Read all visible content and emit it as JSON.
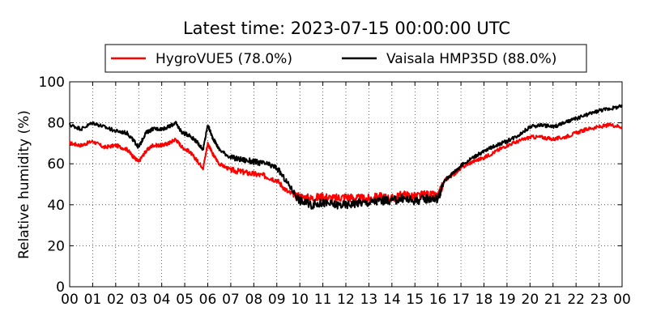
{
  "chart_data": {
    "type": "line",
    "title": "Latest time: 2023-07-15 00:00:00 UTC",
    "ylabel": "Relative humidity (%)",
    "xlabel": "",
    "xlim": [
      0,
      24
    ],
    "ylim": [
      0,
      100
    ],
    "x_ticks": [
      "00",
      "01",
      "02",
      "03",
      "04",
      "05",
      "06",
      "07",
      "08",
      "09",
      "10",
      "11",
      "12",
      "13",
      "14",
      "15",
      "16",
      "17",
      "18",
      "19",
      "20",
      "21",
      "22",
      "23",
      "00"
    ],
    "y_ticks": [
      "0",
      "20",
      "40",
      "60",
      "80",
      "100"
    ],
    "grid": true,
    "legend_position": "top-center",
    "series": [
      {
        "name": "HygroVUE5 (78.0%)",
        "color": "#ff0000",
        "x": [
          0,
          0.5,
          1,
          1.5,
          2,
          2.5,
          2.8,
          3,
          3.3,
          3.6,
          4,
          4.3,
          4.6,
          4.9,
          5.2,
          5.5,
          5.8,
          6,
          6.2,
          6.5,
          7,
          7.5,
          8,
          8.5,
          9,
          9.5,
          10,
          10.5,
          11,
          11.5,
          12,
          12.5,
          13,
          13.5,
          14,
          14.5,
          15,
          15.5,
          16,
          16.3,
          16.7,
          17,
          17.5,
          18,
          18.5,
          19,
          19.5,
          20,
          20.5,
          21,
          21.5,
          22,
          22.5,
          23,
          23.5,
          24
        ],
        "y": [
          70,
          69,
          71,
          68,
          69,
          67,
          63,
          61,
          66,
          69,
          69,
          70,
          72,
          68,
          66,
          62,
          58,
          70,
          65,
          60,
          57,
          56,
          55,
          54,
          52,
          46,
          44,
          43,
          44,
          43,
          44,
          43,
          43,
          44,
          43,
          45,
          44,
          45,
          44,
          52,
          55,
          58,
          61,
          63,
          66,
          69,
          71,
          73,
          73,
          72,
          73,
          75,
          77,
          78,
          79,
          78
        ]
      },
      {
        "name": "Vaisala HMP35D (88.0%)",
        "color": "#000000",
        "x": [
          0,
          0.5,
          1,
          1.5,
          2,
          2.5,
          2.8,
          3,
          3.3,
          3.6,
          4,
          4.3,
          4.6,
          4.9,
          5.2,
          5.5,
          5.8,
          6,
          6.2,
          6.5,
          7,
          7.5,
          8,
          8.5,
          9,
          9.5,
          10,
          10.5,
          11,
          11.5,
          12,
          12.5,
          13,
          13.5,
          14,
          14.5,
          15,
          15.5,
          16,
          16.3,
          16.7,
          17,
          17.5,
          18,
          18.5,
          19,
          19.5,
          20,
          20.5,
          21,
          21.5,
          22,
          22.5,
          23,
          23.5,
          24
        ],
        "y": [
          79,
          77,
          80,
          78,
          76,
          75,
          71,
          68,
          75,
          77,
          77,
          78,
          80,
          75,
          74,
          71,
          67,
          79,
          73,
          67,
          63,
          62,
          61,
          60,
          58,
          50,
          42,
          40,
          41,
          40,
          40,
          41,
          41,
          42,
          42,
          43,
          42,
          43,
          43,
          52,
          56,
          59,
          63,
          66,
          69,
          71,
          74,
          78,
          79,
          78,
          80,
          82,
          84,
          86,
          87,
          88
        ]
      }
    ]
  }
}
